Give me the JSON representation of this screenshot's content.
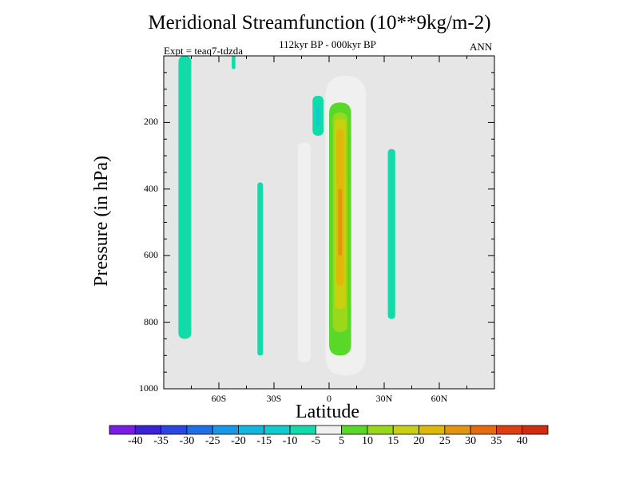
{
  "chart_data": {
    "type": "heatmap",
    "title": "Meridional Streamfunction (10**9kg/m-2)",
    "subtitle": "112kyr BP - 000kyr BP",
    "left_annotation": "Expt = teaq7-tdzda",
    "right_annotation": "ANN",
    "xlabel": "Latitude",
    "ylabel": "Pressure (in hPa)",
    "xlim": [
      -90,
      90
    ],
    "ylim": [
      1000,
      0
    ],
    "x_ticks": [
      -60,
      -30,
      0,
      30,
      60
    ],
    "x_tick_labels": [
      "60S",
      "30S",
      "0",
      "30N",
      "60N"
    ],
    "y_ticks": [
      200,
      400,
      600,
      800,
      1000
    ],
    "y_tick_labels": [
      "200",
      "400",
      "600",
      "800",
      "1000"
    ],
    "background_color": "#e6e6e6",
    "colorbar": {
      "labels": [
        "-40",
        "-35",
        "-30",
        "-25",
        "-20",
        "-15",
        "-10",
        "-5",
        "5",
        "10",
        "15",
        "20",
        "25",
        "30",
        "35",
        "40"
      ],
      "colors": [
        "#7a1be6",
        "#3b22d8",
        "#2948e0",
        "#1f6fe6",
        "#1a98e8",
        "#14b6e0",
        "#10cccc",
        "#10dcaa",
        "#f0f0f0",
        "#5ad82a",
        "#9ad81c",
        "#c8d010",
        "#e0b80a",
        "#e39410",
        "#e56a10",
        "#e23c12"
      ]
    },
    "fields": [
      {
        "name": "neg_sh_high",
        "level": -5,
        "x": [
          -82,
          -75
        ],
        "y": [
          0,
          850
        ]
      },
      {
        "name": "neg_small_top",
        "level": -5,
        "x": [
          -53,
          -51
        ],
        "y": [
          0,
          40
        ]
      },
      {
        "name": "neg_upper_tropic",
        "level": -5,
        "x": [
          -9,
          -3
        ],
        "y": [
          120,
          240
        ]
      },
      {
        "name": "neg_deep_tropic",
        "level": -10,
        "x": [
          -7,
          -5
        ],
        "y": [
          150,
          210
        ]
      },
      {
        "name": "neg_sh_sub",
        "level": -5,
        "x": [
          -39,
          -36
        ],
        "y": [
          380,
          900
        ]
      },
      {
        "name": "neg_nh_sub",
        "level": -5,
        "x": [
          32,
          36
        ],
        "y": [
          280,
          790
        ]
      },
      {
        "name": "pos_sh",
        "level": 5,
        "x": [
          -17,
          -10
        ],
        "y": [
          260,
          920
        ]
      },
      {
        "name": "pos_nh",
        "level": 5,
        "x": [
          13,
          20
        ],
        "y": [
          380,
          930
        ]
      },
      {
        "name": "pos_nh_core",
        "level": 10,
        "x": [
          14,
          19
        ],
        "y": [
          560,
          820
        ]
      },
      {
        "name": "pos_eq",
        "level": 5,
        "x": [
          -2,
          20
        ],
        "y": [
          60,
          960
        ]
      },
      {
        "name": "pos_eq_10",
        "level": 10,
        "x": [
          0,
          12
        ],
        "y": [
          140,
          900
        ]
      },
      {
        "name": "pos_eq_15",
        "level": 15,
        "x": [
          2,
          10
        ],
        "y": [
          170,
          830
        ]
      },
      {
        "name": "pos_eq_20",
        "level": 20,
        "x": [
          3,
          9
        ],
        "y": [
          190,
          760
        ]
      },
      {
        "name": "pos_eq_25",
        "level": 25,
        "x": [
          4,
          8
        ],
        "y": [
          220,
          690
        ]
      },
      {
        "name": "pos_eq_30",
        "level": 30,
        "x": [
          5,
          7
        ],
        "y": [
          400,
          600
        ]
      }
    ]
  }
}
